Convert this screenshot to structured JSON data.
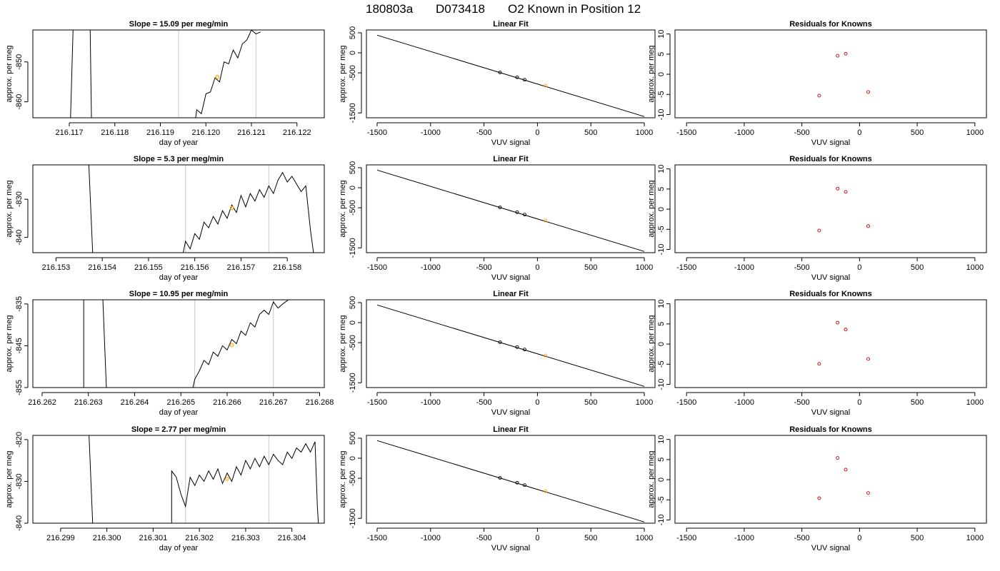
{
  "figure": {
    "title_parts": [
      "180803a",
      "D073418",
      "O2 Known in Position  12"
    ]
  },
  "colors": {
    "trace": "#000000",
    "marker_orange": "#FFA500",
    "residual_red": "#CD0000",
    "grey_line": "#C8C8C8"
  },
  "chart_data": [
    {
      "type": "line",
      "row": 0,
      "title": "Slope =  15.09  per meg/min",
      "xlabel": "day of year",
      "ylabel": "approx. per meg",
      "xlim": [
        216.1162,
        216.1226
      ],
      "ylim": [
        -864,
        -842
      ],
      "xticks": [
        216.117,
        216.118,
        216.119,
        216.12,
        216.121,
        216.122
      ],
      "xtick_labels": [
        "216.117",
        "216.118",
        "216.119",
        "216.120",
        "216.121",
        "216.122"
      ],
      "yticks": [
        -850,
        -860
      ],
      "ytick_labels": [
        "-850",
        "-860"
      ],
      "vlines": [
        216.1194,
        216.1211
      ],
      "marker": {
        "x": 216.12025,
        "y": -853.8
      },
      "trace": [
        [
          216.117,
          -875
        ],
        [
          216.1171,
          -835
        ],
        [
          216.11745,
          -835
        ],
        [
          216.1175,
          -875
        ],
        [
          216.1197,
          -870
        ],
        [
          216.1198,
          -862
        ],
        [
          216.1199,
          -863
        ],
        [
          216.12,
          -858
        ],
        [
          216.1201,
          -857.5
        ],
        [
          216.1202,
          -854
        ],
        [
          216.1203,
          -855
        ],
        [
          216.1204,
          -850
        ],
        [
          216.1205,
          -850.5
        ],
        [
          216.1206,
          -847
        ],
        [
          216.1207,
          -849
        ],
        [
          216.1208,
          -845.5
        ],
        [
          216.1209,
          -844.5
        ],
        [
          216.121,
          -842
        ],
        [
          216.1211,
          -843
        ],
        [
          216.1212,
          -842.5
        ]
      ]
    },
    {
      "type": "line",
      "row": 1,
      "title": "Slope =  5.3  per meg/min",
      "xlabel": "day of year",
      "ylabel": "approx. per meg",
      "xlim": [
        216.1525,
        216.1588
      ],
      "ylim": [
        -844,
        -821
      ],
      "xticks": [
        216.153,
        216.154,
        216.155,
        216.156,
        216.157,
        216.158
      ],
      "xtick_labels": [
        "216.153",
        "216.154",
        "216.155",
        "216.156",
        "216.157",
        "216.158"
      ],
      "yticks": [
        -830,
        -840
      ],
      "ytick_labels": [
        "-830",
        "-840"
      ],
      "vlines": [
        216.1558,
        216.1576
      ],
      "marker": {
        "x": 216.1568,
        "y": -832.3
      },
      "trace": [
        [
          216.1537,
          -818
        ],
        [
          216.1538,
          -846
        ],
        [
          216.1557,
          -847
        ],
        [
          216.1558,
          -841
        ],
        [
          216.1559,
          -843
        ],
        [
          216.156,
          -839
        ],
        [
          216.1561,
          -840.5
        ],
        [
          216.1562,
          -836
        ],
        [
          216.1563,
          -837.5
        ],
        [
          216.1564,
          -834.5
        ],
        [
          216.1565,
          -836.5
        ],
        [
          216.1566,
          -833
        ],
        [
          216.1567,
          -835
        ],
        [
          216.1568,
          -831.5
        ],
        [
          216.1569,
          -833.5
        ],
        [
          216.157,
          -829
        ],
        [
          216.1571,
          -832
        ],
        [
          216.1572,
          -828.5
        ],
        [
          216.1573,
          -830.5
        ],
        [
          216.1574,
          -827.5
        ],
        [
          216.1575,
          -829.5
        ],
        [
          216.1576,
          -826.5
        ],
        [
          216.1577,
          -828.5
        ],
        [
          216.1578,
          -825
        ],
        [
          216.1579,
          -823
        ],
        [
          216.158,
          -825.5
        ],
        [
          216.1581,
          -824
        ],
        [
          216.1582,
          -826
        ],
        [
          216.1583,
          -828
        ],
        [
          216.1584,
          -826.5
        ],
        [
          216.1585,
          -838
        ],
        [
          216.1586,
          -847
        ]
      ]
    },
    {
      "type": "line",
      "row": 2,
      "title": "Slope =  10.95  per meg/min",
      "xlabel": "day of year",
      "ylabel": "approx. per meg",
      "xlim": [
        216.2618,
        216.2681
      ],
      "ylim": [
        -855,
        -834
      ],
      "xticks": [
        216.262,
        216.263,
        216.264,
        216.265,
        216.266,
        216.267,
        216.268
      ],
      "xtick_labels": [
        "216.262",
        "216.263",
        "216.264",
        "216.265",
        "216.266",
        "216.267",
        "216.268"
      ],
      "yticks": [
        -835,
        -845,
        -855
      ],
      "ytick_labels": [
        "-835",
        "-845",
        "-855"
      ],
      "vlines": [
        216.2653,
        216.267
      ],
      "marker": {
        "x": 216.2661,
        "y": -844.8
      },
      "trace": [
        [
          216.2629,
          -858
        ],
        [
          216.2629,
          -830
        ],
        [
          216.2633,
          -830
        ],
        [
          216.2634,
          -858
        ],
        [
          216.2652,
          -858
        ],
        [
          216.2653,
          -853
        ],
        [
          216.2654,
          -851
        ],
        [
          216.2655,
          -848.5
        ],
        [
          216.2656,
          -849.5
        ],
        [
          216.2657,
          -846.5
        ],
        [
          216.2658,
          -847.5
        ],
        [
          216.2659,
          -845
        ],
        [
          216.266,
          -846
        ],
        [
          216.2661,
          -843.5
        ],
        [
          216.2662,
          -844.5
        ],
        [
          216.2663,
          -841.5
        ],
        [
          216.2664,
          -842.5
        ],
        [
          216.2665,
          -839.5
        ],
        [
          216.2666,
          -840.5
        ],
        [
          216.2667,
          -837.5
        ],
        [
          216.2668,
          -836.5
        ],
        [
          216.2669,
          -837.5
        ],
        [
          216.267,
          -834.5
        ],
        [
          216.2671,
          -836
        ],
        [
          216.2672,
          -835
        ],
        [
          216.2673,
          -834.2
        ],
        [
          216.2674,
          -833
        ]
      ]
    },
    {
      "type": "line",
      "row": 3,
      "title": "Slope =  2.77  per meg/min",
      "xlabel": "day of year",
      "ylabel": "approx. per meg",
      "xlim": [
        216.2984,
        216.3047
      ],
      "ylim": [
        -840,
        -819
      ],
      "xticks": [
        216.299,
        216.3,
        216.301,
        216.302,
        216.303,
        216.304
      ],
      "xtick_labels": [
        "216.299",
        "216.300",
        "216.301",
        "216.302",
        "216.303",
        "216.304"
      ],
      "yticks": [
        -820,
        -830,
        -840
      ],
      "ytick_labels": [
        "-820",
        "-830",
        "-840"
      ],
      "vlines": [
        216.3017,
        216.3035
      ],
      "marker": {
        "x": 216.3026,
        "y": -829.4
      },
      "trace": [
        [
          216.2996,
          -815
        ],
        [
          216.2997,
          -842
        ],
        [
          216.3014,
          -842
        ],
        [
          216.3014,
          -827.5
        ],
        [
          216.3015,
          -829
        ],
        [
          216.3016,
          -833
        ],
        [
          216.3017,
          -836
        ],
        [
          216.3018,
          -829
        ],
        [
          216.3019,
          -831
        ],
        [
          216.302,
          -828.5
        ],
        [
          216.3021,
          -830
        ],
        [
          216.3022,
          -827.5
        ],
        [
          216.3023,
          -829.5
        ],
        [
          216.3024,
          -827
        ],
        [
          216.3025,
          -830.5
        ],
        [
          216.3026,
          -828
        ],
        [
          216.3027,
          -830
        ],
        [
          216.3028,
          -826.5
        ],
        [
          216.3029,
          -828.5
        ],
        [
          216.303,
          -825
        ],
        [
          216.3031,
          -827
        ],
        [
          216.3032,
          -824.5
        ],
        [
          216.3033,
          -826.5
        ],
        [
          216.3034,
          -824
        ],
        [
          216.3035,
          -826
        ],
        [
          216.3036,
          -823.5
        ],
        [
          216.3037,
          -825
        ],
        [
          216.3038,
          -826
        ],
        [
          216.3039,
          -823
        ],
        [
          216.304,
          -824.5
        ],
        [
          216.3041,
          -822
        ],
        [
          216.3042,
          -823
        ],
        [
          216.3043,
          -821
        ],
        [
          216.3044,
          -823
        ],
        [
          216.3045,
          -820.5
        ],
        [
          216.30455,
          -836
        ],
        [
          216.3046,
          -845
        ]
      ]
    },
    {
      "type": "scatter",
      "row": 0,
      "title": "Linear Fit",
      "xlabel": "VUV signal",
      "ylabel": "approx. per meg",
      "xlim": [
        -1600,
        1100
      ],
      "ylim": [
        -1620,
        570
      ],
      "xticks": [
        -1500,
        -1000,
        -500,
        0,
        500,
        1000
      ],
      "xtick_labels": [
        "-1500",
        "-1000",
        "-500",
        "0",
        "500",
        "1000"
      ],
      "yticks": [
        500,
        0,
        -500,
        -1500
      ],
      "ytick_labels": [
        "500",
        "0",
        "-500",
        "-1500"
      ],
      "line": [
        [
          -1500,
          440
        ],
        [
          1000,
          -1590
        ]
      ],
      "points": [
        [
          -350,
          -490
        ],
        [
          -190,
          -610
        ],
        [
          -120,
          -670
        ],
        [
          75,
          -820
        ]
      ],
      "highlight_index": 3
    },
    {
      "type": "scatter",
      "row": 1,
      "title": "Linear Fit",
      "xlabel": "VUV signal",
      "ylabel": "approx. per meg",
      "xlim": [
        -1600,
        1100
      ],
      "ylim": [
        -1620,
        570
      ],
      "xticks": [
        -1500,
        -1000,
        -500,
        0,
        500,
        1000
      ],
      "xtick_labels": [
        "-1500",
        "-1000",
        "-500",
        "0",
        "500",
        "1000"
      ],
      "yticks": [
        500,
        0,
        -500,
        -1500
      ],
      "ytick_labels": [
        "500",
        "0",
        "-500",
        "-1500"
      ],
      "line": [
        [
          -1500,
          440
        ],
        [
          1000,
          -1590
        ]
      ],
      "points": [
        [
          -350,
          -490
        ],
        [
          -190,
          -610
        ],
        [
          -120,
          -670
        ],
        [
          75,
          -820
        ]
      ],
      "highlight_index": 3
    },
    {
      "type": "scatter",
      "row": 2,
      "title": "Linear Fit",
      "xlabel": "VUV signal",
      "ylabel": "approx. per meg",
      "xlim": [
        -1600,
        1100
      ],
      "ylim": [
        -1620,
        570
      ],
      "xticks": [
        -1500,
        -1000,
        -500,
        0,
        500,
        1000
      ],
      "xtick_labels": [
        "-1500",
        "-1000",
        "-500",
        "0",
        "500",
        "1000"
      ],
      "yticks": [
        500,
        0,
        -500,
        -1500
      ],
      "ytick_labels": [
        "500",
        "0",
        "-500",
        "-1500"
      ],
      "line": [
        [
          -1500,
          440
        ],
        [
          1000,
          -1590
        ]
      ],
      "points": [
        [
          -350,
          -490
        ],
        [
          -190,
          -610
        ],
        [
          -120,
          -670
        ],
        [
          75,
          -820
        ]
      ],
      "highlight_index": 3
    },
    {
      "type": "scatter",
      "row": 3,
      "title": "Linear Fit",
      "xlabel": "VUV signal",
      "ylabel": "approx. per meg",
      "xlim": [
        -1600,
        1100
      ],
      "ylim": [
        -1620,
        570
      ],
      "xticks": [
        -1500,
        -1000,
        -500,
        0,
        500,
        1000
      ],
      "xtick_labels": [
        "-1500",
        "-1000",
        "-500",
        "0",
        "500",
        "1000"
      ],
      "yticks": [
        500,
        0,
        -500,
        -1500
      ],
      "ytick_labels": [
        "500",
        "0",
        "-500",
        "-1500"
      ],
      "line": [
        [
          -1500,
          440
        ],
        [
          1000,
          -1590
        ]
      ],
      "points": [
        [
          -350,
          -490
        ],
        [
          -190,
          -610
        ],
        [
          -120,
          -670
        ],
        [
          75,
          -820
        ]
      ],
      "highlight_index": 3
    },
    {
      "type": "scatter",
      "row": 0,
      "title": "Residuals for Knowns",
      "xlabel": "VUV signal",
      "ylabel": "approx. per meg",
      "xlim": [
        -1600,
        1100
      ],
      "ylim": [
        -10.8,
        11
      ],
      "xticks": [
        -1500,
        -1000,
        -500,
        0,
        500,
        1000
      ],
      "xtick_labels": [
        "-1500",
        "-1000",
        "-500",
        "0",
        "500",
        "1000"
      ],
      "yticks": [
        10,
        5,
        0,
        -5,
        -10
      ],
      "ytick_labels": [
        "10",
        "5",
        "0",
        "-5",
        "-10"
      ],
      "points": [
        [
          -350,
          -5.3
        ],
        [
          -190,
          4.6
        ],
        [
          -120,
          5.1
        ],
        [
          75,
          -4.4
        ]
      ]
    },
    {
      "type": "scatter",
      "row": 1,
      "title": "Residuals for Knowns",
      "xlabel": "VUV signal",
      "ylabel": "approx. per meg",
      "xlim": [
        -1600,
        1100
      ],
      "ylim": [
        -10.8,
        11
      ],
      "xticks": [
        -1500,
        -1000,
        -500,
        0,
        500,
        1000
      ],
      "xtick_labels": [
        "-1500",
        "-1000",
        "-500",
        "0",
        "500",
        "1000"
      ],
      "yticks": [
        10,
        5,
        0,
        -5,
        -10
      ],
      "ytick_labels": [
        "10",
        "5",
        "0",
        "-5",
        "-10"
      ],
      "points": [
        [
          -350,
          -5.3
        ],
        [
          -190,
          5.1
        ],
        [
          -120,
          4.3
        ],
        [
          75,
          -4.2
        ]
      ]
    },
    {
      "type": "scatter",
      "row": 2,
      "title": "Residuals for Knowns",
      "xlabel": "VUV signal",
      "ylabel": "approx. per meg",
      "xlim": [
        -1600,
        1100
      ],
      "ylim": [
        -10.8,
        11
      ],
      "xticks": [
        -1500,
        -1000,
        -500,
        0,
        500,
        1000
      ],
      "xtick_labels": [
        "-1500",
        "-1000",
        "-500",
        "0",
        "500",
        "1000"
      ],
      "yticks": [
        10,
        5,
        0,
        -5,
        -10
      ],
      "ytick_labels": [
        "10",
        "5",
        "0",
        "-5",
        "-10"
      ],
      "points": [
        [
          -350,
          -4.9
        ],
        [
          -190,
          5.3
        ],
        [
          -120,
          3.6
        ],
        [
          75,
          -3.7
        ]
      ]
    },
    {
      "type": "scatter",
      "row": 3,
      "title": "Residuals for Knowns",
      "xlabel": "VUV signal",
      "ylabel": "approx. per meg",
      "xlim": [
        -1600,
        1100
      ],
      "ylim": [
        -10.8,
        11
      ],
      "xticks": [
        -1500,
        -1000,
        -500,
        0,
        500,
        1000
      ],
      "xtick_labels": [
        "-1500",
        "-1000",
        "-500",
        "0",
        "500",
        "1000"
      ],
      "yticks": [
        10,
        5,
        0,
        -5,
        -10
      ],
      "ytick_labels": [
        "10",
        "5",
        "0",
        "-5",
        "-10"
      ],
      "points": [
        [
          -350,
          -4.6
        ],
        [
          -190,
          5.4
        ],
        [
          -120,
          2.5
        ],
        [
          75,
          -3.3
        ]
      ]
    }
  ]
}
